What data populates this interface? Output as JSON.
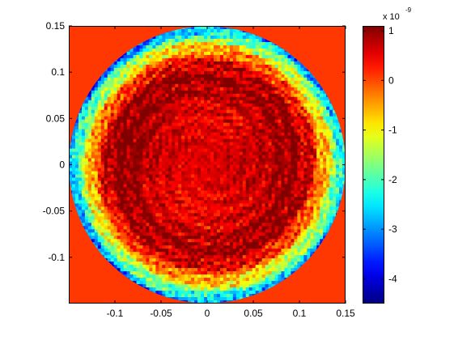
{
  "chart_data": {
    "type": "heatmap",
    "title": "",
    "xlabel": "",
    "ylabel": "",
    "xlim": [
      -0.15,
      0.15
    ],
    "ylim": [
      -0.15,
      0.15
    ],
    "x_ticks": [
      -0.1,
      -0.05,
      0,
      0.05,
      0.1,
      0.15
    ],
    "x_tick_labels": [
      "-0.1",
      "-0.05",
      "0",
      "0.05",
      "0.1",
      "0.15"
    ],
    "y_ticks": [
      0.15,
      0.1,
      0.05,
      0,
      -0.05,
      -0.1
    ],
    "y_tick_labels": [
      "0.15",
      "0.1",
      "0.05",
      "0",
      "-0.05",
      "-0.1"
    ],
    "aperture": {
      "shape": "circle",
      "center": [
        0,
        0
      ],
      "radius": 0.15
    },
    "outside_aperture_value": 0.1,
    "field_description": "rim region strongly negative (about -3 to -4.5), interior mostly near 0 to +0.8, with a ring of positive ridges between radius 0.06 and 0.11",
    "colorbar": {
      "colormap": "jet",
      "range": [
        -4.5,
        1.1
      ],
      "ticks": [
        1,
        0,
        -1,
        -2,
        -3,
        -4
      ],
      "tick_labels": [
        "1",
        "0",
        "-1",
        "-2",
        "-3",
        "-4"
      ],
      "scale_label": "x 10",
      "scale_exponent": "-9",
      "orientation": "vertical",
      "placement": "right"
    },
    "grid": false
  }
}
